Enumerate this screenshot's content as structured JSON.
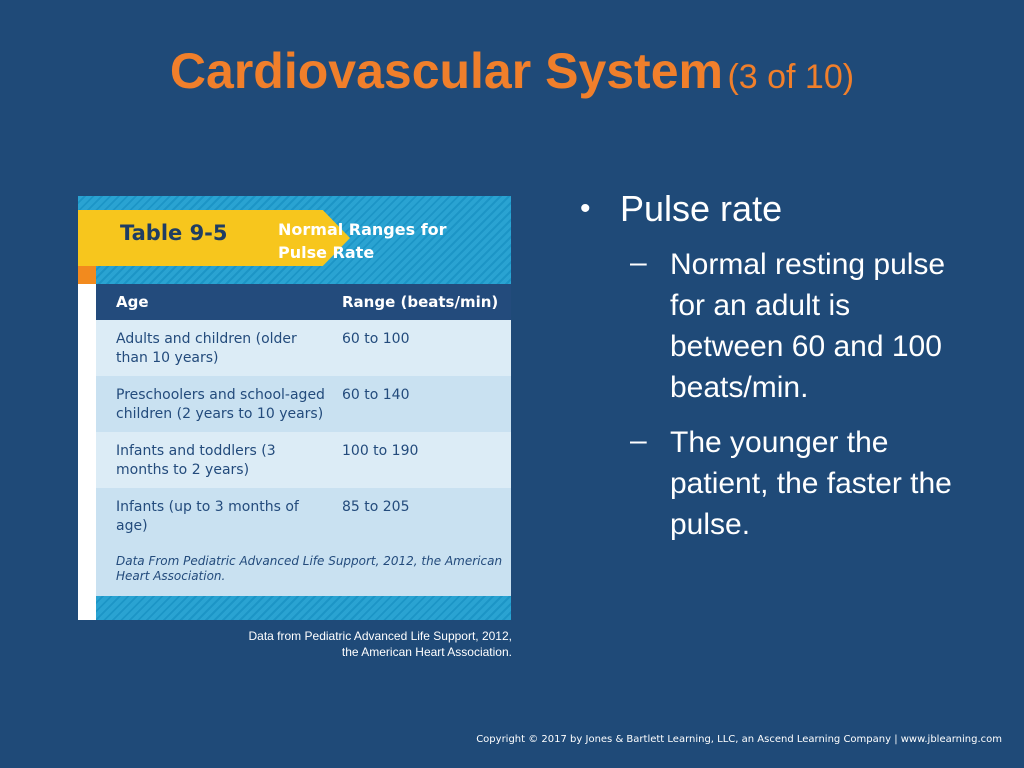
{
  "slide": {
    "title_main": "Cardiovascular System",
    "title_sub": "(3 of 10)"
  },
  "table_figure": {
    "label": "Table 9-5",
    "caption": "Normal Ranges for Pulse Rate",
    "headers": [
      "Age",
      "Range (beats/min)"
    ],
    "rows": [
      {
        "age": "Adults and children (older than 10 years)",
        "range": "60 to 100"
      },
      {
        "age": "Preschoolers and school-aged children (2 years to 10 years)",
        "range": "60 to 140"
      },
      {
        "age": "Infants and toddlers (3 months to 2 years)",
        "range": "100 to 190"
      },
      {
        "age": "Infants (up to 3 months of age)",
        "range": "85 to 205"
      }
    ],
    "source": "Data From Pediatric Advanced Life Support, 2012, the American Heart Association."
  },
  "image_credit": "Data from Pediatric Advanced Life Support, 2012, the American Heart Association.",
  "bullets": {
    "main": "Pulse rate",
    "sub": [
      "Normal resting pulse for an adult is between 60 and 100 beats/min.",
      "The younger the patient, the faster the pulse."
    ]
  },
  "copyright": "Copyright © 2017 by Jones & Bartlett Learning, LLC, an Ascend Learning Company | www.jblearning.com"
}
